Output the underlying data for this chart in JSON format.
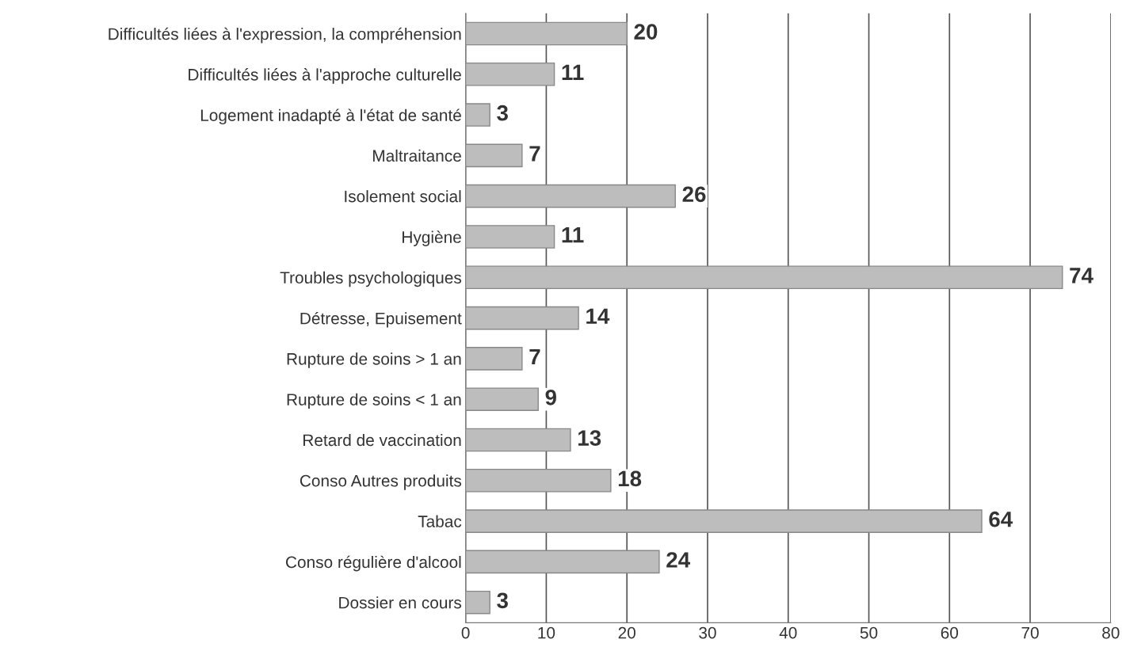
{
  "chart_data": {
    "type": "bar",
    "orientation": "horizontal",
    "categories": [
      "Difficultés liées à l'expression, la compréhension",
      "Difficultés liées à l'approche culturelle",
      "Logement inadapté à l'état de santé",
      "Maltraitance",
      "Isolement social",
      "Hygiène",
      "Troubles psychologiques",
      "Détresse, Epuisement",
      "Rupture de soins > 1 an",
      "Rupture de soins < 1 an",
      "Retard de vaccination",
      "Conso Autres produits",
      "Tabac",
      "Conso régulière d'alcool",
      "Dossier en cours"
    ],
    "values": [
      20,
      11,
      3,
      7,
      26,
      11,
      74,
      14,
      7,
      9,
      13,
      18,
      64,
      24,
      3
    ],
    "color": "#bdbdbd",
    "xlim": [
      0,
      80
    ],
    "xticks": [
      0,
      10,
      20,
      30,
      40,
      50,
      60,
      70,
      80
    ],
    "grid": "x",
    "data_labels": true
  }
}
